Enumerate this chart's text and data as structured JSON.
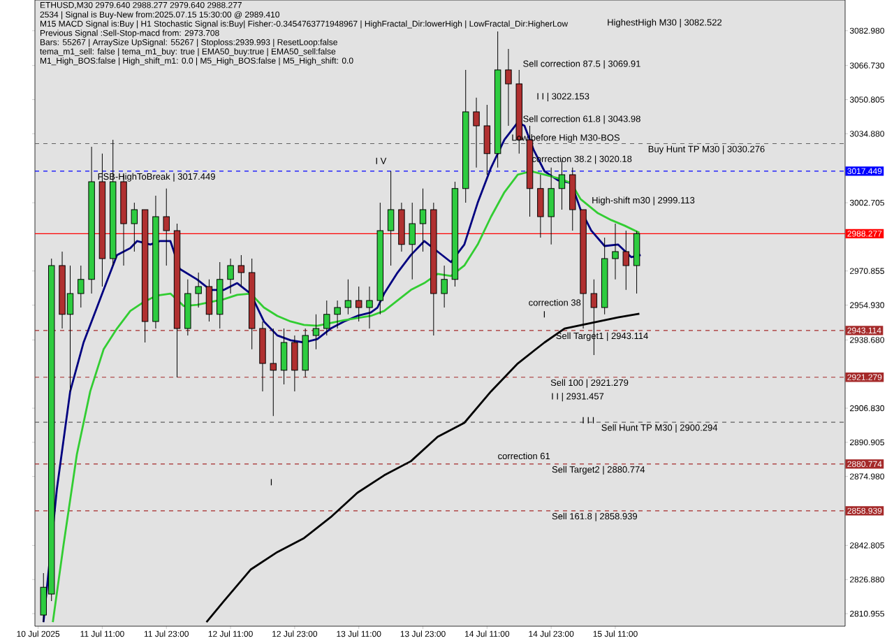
{
  "chart_data": {
    "type": "candlestick",
    "title": "ETHUSD,M30  2979.640 2988.277 2979.640 2988.277",
    "annotations": [
      "2534 | Signal is Buy-New from:2025.07.15 15:30:00 @ 2989.410",
      "M15 MACD Signal is:Buy | H1 Stochastic Signal is:Buy| Fisher:-0.3454763771948967 | HighFractal_Dir:lowerHigh | LowFractal_Dir:HigherLow",
      "Previous Signal :Sell-Stop-macd from: 2973.708",
      "Bars: 55267 | ArraySize UpSignal: 55267 | Stoploss:2939.993 | ResetLoop:false",
      "tema_m1_sell: false | tema_m1_buy: true | EMA50_buy:true | EMA50_sell:false",
      "M1_High_BOS:false | High_shift_m1: 0.0 | M5_High_BOS:false | M5_High_shift: 0.0",
      "HighestHigh   M30 | 3082.522",
      "Sell correction 87.5 | 3069.91",
      "I I | 3022.153",
      "Sell correction 61.8 | 3043.98",
      "Low before High   M30-BOS",
      "I V",
      "correction 38.2 | 3020.18",
      "High-shift m30 | 2999.113",
      "correction 38",
      "I",
      "I I | 2931.457",
      "I I I",
      "correction 61",
      "I",
      {
        "text": "FSB-HighToBreak | 3017.449",
        "x": "2025-07-11T09:45",
        "y": 3017.449
      },
      {
        "text": "Buy Hunt TP M30 | 3030.276",
        "x": "2025-07-15T16:45",
        "y": 3030.276
      },
      {
        "text": "Sell Target1 | 2943.114",
        "x": "2025-07-14T23:30",
        "y": 2943.114
      },
      {
        "text": "Sell 100 | 2921.279",
        "x": "2025-07-14T22:30",
        "y": 2921.279
      },
      {
        "text": "Sell Hunt TP M30 | 2900.294",
        "x": "2025-07-15T08:00",
        "y": 2900.294
      },
      {
        "text": "Sell Target2 | 2880.774",
        "x": "2025-07-14T22:45",
        "y": 2880.774
      },
      {
        "text": "Sell 161.8 | 2858.939",
        "x": "2025-07-14T22:45",
        "y": 2858.939
      }
    ],
    "x": [
      "2025-07-11T00:00",
      "2025-07-11T01:30",
      "2025-07-11T03:30",
      "2025-07-11T05:00",
      "2025-07-11T07:00",
      "2025-07-11T09:00",
      "2025-07-11T11:00",
      "2025-07-11T13:00",
      "2025-07-11T15:00",
      "2025-07-11T17:00",
      "2025-07-11T19:00",
      "2025-07-11T21:00",
      "2025-07-11T23:00",
      "2025-07-12T01:00",
      "2025-07-12T03:00",
      "2025-07-12T05:00",
      "2025-07-12T07:00",
      "2025-07-12T09:00",
      "2025-07-12T11:00",
      "2025-07-12T13:00",
      "2025-07-12T15:00",
      "2025-07-12T17:00",
      "2025-07-12T19:00",
      "2025-07-12T21:00",
      "2025-07-12T23:00",
      "2025-07-13T01:00",
      "2025-07-13T03:00",
      "2025-07-13T05:00",
      "2025-07-13T07:00",
      "2025-07-13T09:00",
      "2025-07-13T11:00",
      "2025-07-13T13:00",
      "2025-07-13T15:00",
      "2025-07-13T17:00",
      "2025-07-13T19:00",
      "2025-07-13T21:00",
      "2025-07-13T23:00",
      "2025-07-14T01:00",
      "2025-07-14T03:00",
      "2025-07-14T05:00",
      "2025-07-14T07:00",
      "2025-07-14T09:00",
      "2025-07-14T11:00",
      "2025-07-14T13:00",
      "2025-07-14T15:00",
      "2025-07-14T17:00",
      "2025-07-14T19:00",
      "2025-07-14T21:00",
      "2025-07-14T23:00",
      "2025-07-15T01:00",
      "2025-07-15T03:00",
      "2025-07-15T05:00",
      "2025-07-15T07:00",
      "2025-07-15T09:00",
      "2025-07-15T11:00",
      "2025-07-15T13:00",
      "2025-07-15T15:00"
    ],
    "ohlc": [
      [
        2810.3,
        2829.9,
        2807.0,
        2823.3
      ],
      [
        2820.1,
        2976.6,
        2816.8,
        2973.4
      ],
      [
        2973.4,
        2979.9,
        2944.0,
        2950.6
      ],
      [
        2950.6,
        2973.4,
        2914.7,
        2960.3
      ],
      [
        2960.3,
        2973.4,
        2953.8,
        2966.9
      ],
      [
        2966.9,
        3028.8,
        2960.3,
        3012.5
      ],
      [
        3012.5,
        3025.6,
        2963.6,
        2976.6
      ],
      [
        2976.6,
        3032.1,
        2973.4,
        3012.5
      ],
      [
        3012.5,
        3015.8,
        2973.4,
        2992.9
      ],
      [
        2992.9,
        3002.7,
        2979.9,
        2999.5
      ],
      [
        2999.5,
        2999.5,
        2937.5,
        2947.3
      ],
      [
        2947.3,
        3006.0,
        2944.0,
        2996.2
      ],
      [
        2996.2,
        3009.3,
        2973.4,
        2989.7
      ],
      [
        2989.7,
        2992.9,
        2921.2,
        2944.0
      ],
      [
        2944.0,
        2966.9,
        2940.8,
        2960.3
      ],
      [
        2960.3,
        2970.1,
        2953.8,
        2963.6
      ],
      [
        2963.6,
        2966.9,
        2947.3,
        2950.6
      ],
      [
        2950.6,
        2975.0,
        2944.0,
        2966.9
      ],
      [
        2966.9,
        2976.6,
        2960.3,
        2973.4
      ],
      [
        2973.4,
        2978.3,
        2963.6,
        2970.1
      ],
      [
        2970.1,
        2976.6,
        2934.3,
        2944.0
      ],
      [
        2944.0,
        2947.3,
        2914.7,
        2927.7
      ],
      [
        2927.7,
        2944.0,
        2903.2,
        2924.5
      ],
      [
        2924.5,
        2944.0,
        2917.9,
        2937.5
      ],
      [
        2937.5,
        2940.8,
        2914.7,
        2924.5
      ],
      [
        2924.5,
        2944.0,
        2921.2,
        2940.8
      ],
      [
        2940.8,
        2950.6,
        2934.3,
        2944.0
      ],
      [
        2944.0,
        2957.1,
        2940.8,
        2950.6
      ],
      [
        2950.6,
        2957.1,
        2944.0,
        2953.8
      ],
      [
        2953.8,
        2966.9,
        2950.6,
        2957.1
      ],
      [
        2957.1,
        2963.6,
        2947.3,
        2953.8
      ],
      [
        2953.8,
        2963.6,
        2944.0,
        2957.1
      ],
      [
        2957.1,
        3002.7,
        2950.6,
        2989.7
      ],
      [
        2989.7,
        3017.4,
        2973.4,
        2999.5
      ],
      [
        2999.5,
        3002.7,
        2979.9,
        2983.2
      ],
      [
        2983.2,
        3002.7,
        2966.9,
        2992.9
      ],
      [
        2992.9,
        3009.3,
        2979.9,
        2999.5
      ],
      [
        2999.5,
        3002.7,
        2940.8,
        2960.3
      ],
      [
        2960.3,
        2973.4,
        2953.8,
        2966.9
      ],
      [
        2966.9,
        3012.5,
        2963.6,
        3009.3
      ],
      [
        3009.3,
        3064.7,
        3002.7,
        3045.1
      ],
      [
        3045.1,
        3051.7,
        3019.1,
        3038.6
      ],
      [
        3038.6,
        3048.4,
        3015.8,
        3025.6
      ],
      [
        3025.6,
        3082.6,
        3019.1,
        3064.7
      ],
      [
        3064.7,
        3074.5,
        3038.6,
        3058.2
      ],
      [
        3058.2,
        3064.7,
        3025.6,
        3032.1
      ],
      [
        3032.1,
        3038.6,
        2996.2,
        3009.3
      ],
      [
        3009.3,
        3015.8,
        2986.4,
        2996.2
      ],
      [
        2996.2,
        3019.1,
        2983.2,
        3009.3
      ],
      [
        3009.3,
        3022.3,
        2999.5,
        3015.8
      ],
      [
        3015.8,
        3019.1,
        2989.7,
        2999.5
      ],
      [
        2999.5,
        2999.5,
        2944.0,
        2960.3
      ],
      [
        2960.3,
        2966.9,
        2931.6,
        2953.8
      ],
      [
        2953.8,
        2986.4,
        2950.6,
        2976.6
      ],
      [
        2976.6,
        2992.9,
        2966.9,
        2979.9
      ],
      [
        2979.9,
        2989.7,
        2962.0,
        2973.4
      ],
      [
        2973.4,
        2989.4,
        2960.3,
        2988.3
      ]
    ],
    "series": [
      {
        "type": "line",
        "color": "#000080",
        "x": [
          "2025-07-11T00:00",
          "2025-07-11T02:30",
          "2025-07-11T05:00",
          "2025-07-11T07:30",
          "2025-07-11T10:00",
          "2025-07-11T11:15",
          "2025-07-11T13:45",
          "2025-07-11T16:15",
          "2025-07-11T17:30",
          "2025-07-11T20:00",
          "2025-07-11T21:45",
          "2025-07-11T23:45",
          "2025-07-12T01:30",
          "2025-07-12T04:45",
          "2025-07-12T07:15",
          "2025-07-12T09:45",
          "2025-07-12T12:15",
          "2025-07-12T14:45",
          "2025-07-12T17:15",
          "2025-07-12T19:45",
          "2025-07-12T22:15",
          "2025-07-13T00:45",
          "2025-07-13T03:15",
          "2025-07-13T05:45",
          "2025-07-13T08:15",
          "2025-07-13T10:45",
          "2025-07-13T13:15",
          "2025-07-13T14:30",
          "2025-07-13T15:45",
          "2025-07-13T18:15",
          "2025-07-13T20:45",
          "2025-07-13T23:15",
          "2025-07-14T01:45",
          "2025-07-14T04:15",
          "2025-07-14T06:45",
          "2025-07-14T09:15",
          "2025-07-14T11:45",
          "2025-07-14T14:15",
          "2025-07-14T16:45",
          "2025-07-14T18:00",
          "2025-07-14T19:45",
          "2025-07-14T21:45",
          "2025-07-15T00:15",
          "2025-07-15T02:45",
          "2025-07-15T04:30",
          "2025-07-15T06:30",
          "2025-07-15T09:00",
          "2025-07-15T11:30",
          "2025-07-15T14:00",
          "2025-07-15T15:45"
        ],
        "values": [
          2807.0,
          2869.0,
          2914.7,
          2937.5,
          2953.8,
          2962.0,
          2978.3,
          2981.5,
          2984.8,
          2983.2,
          2984.8,
          2984.8,
          2971.8,
          2966.9,
          2962.0,
          2962.0,
          2965.2,
          2960.3,
          2947.3,
          2940.8,
          2938.5,
          2937.5,
          2939.1,
          2944.0,
          2947.3,
          2949.9,
          2951.5,
          2953.8,
          2960.3,
          2970.1,
          2978.3,
          2984.8,
          2979.9,
          2975.0,
          2983.2,
          3002.7,
          3019.1,
          3032.1,
          3040.2,
          3038.6,
          3027.2,
          3017.4,
          3013.2,
          3011.9,
          2999.5,
          2989.7,
          2982.5,
          2983.2,
          2977.3,
          2978.3
        ]
      },
      {
        "type": "line",
        "color": "#32cd32",
        "x": [
          "2025-07-11T01:45",
          "2025-07-11T03:45",
          "2025-07-11T06:15",
          "2025-07-11T08:45",
          "2025-07-11T11:15",
          "2025-07-11T13:45",
          "2025-07-11T16:15",
          "2025-07-11T18:45",
          "2025-07-11T21:15",
          "2025-07-11T23:45",
          "2025-07-12T02:15",
          "2025-07-12T04:45",
          "2025-07-12T07:15",
          "2025-07-12T09:45",
          "2025-07-12T12:15",
          "2025-07-12T14:45",
          "2025-07-12T17:15",
          "2025-07-12T19:45",
          "2025-07-12T22:15",
          "2025-07-13T00:45",
          "2025-07-13T03:15",
          "2025-07-13T05:45",
          "2025-07-13T08:15",
          "2025-07-13T10:45",
          "2025-07-13T13:15",
          "2025-07-13T15:45",
          "2025-07-13T18:15",
          "2025-07-13T20:45",
          "2025-07-13T23:15",
          "2025-07-14T01:45",
          "2025-07-14T04:15",
          "2025-07-14T06:45",
          "2025-07-14T09:15",
          "2025-07-14T11:45",
          "2025-07-14T14:15",
          "2025-07-14T16:45",
          "2025-07-14T19:15",
          "2025-07-14T21:45",
          "2025-07-15T00:15",
          "2025-07-15T02:45",
          "2025-07-15T04:30",
          "2025-07-15T07:45",
          "2025-07-15T10:15",
          "2025-07-15T12:45",
          "2025-07-15T15:30"
        ],
        "values": [
          2807.0,
          2843.0,
          2885.3,
          2914.7,
          2934.3,
          2944.0,
          2952.2,
          2956.4,
          2959.4,
          2960.3,
          2954.5,
          2955.1,
          2956.4,
          2957.7,
          2959.7,
          2960.3,
          2953.8,
          2949.9,
          2947.3,
          2945.7,
          2945.3,
          2946.6,
          2947.9,
          2948.9,
          2949.9,
          2952.2,
          2957.1,
          2962.0,
          2965.2,
          2969.5,
          2968.5,
          2973.4,
          2983.2,
          2996.2,
          3007.6,
          3015.8,
          3017.4,
          3015.8,
          3014.2,
          3011.9,
          3004.4,
          2997.8,
          2994.6,
          2992.0,
          2988.7
        ]
      },
      {
        "type": "line",
        "color": "#000000",
        "x": [
          "2025-07-12T06:30",
          "2025-07-12T09:45",
          "2025-07-12T14:45",
          "2025-07-12T19:45",
          "2025-07-13T00:45",
          "2025-07-13T05:45",
          "2025-07-13T10:45",
          "2025-07-13T15:45",
          "2025-07-13T20:45",
          "2025-07-14T01:45",
          "2025-07-14T06:45",
          "2025-07-14T11:45",
          "2025-07-14T16:45",
          "2025-07-14T21:45",
          "2025-07-15T01:30",
          "2025-07-15T06:30",
          "2025-07-15T11:30",
          "2025-07-15T15:30"
        ],
        "values": [
          2807.0,
          2816.8,
          2831.5,
          2839.7,
          2846.2,
          2856.0,
          2867.4,
          2875.5,
          2882.1,
          2893.5,
          2900.0,
          2914.7,
          2927.7,
          2937.5,
          2944.0,
          2946.6,
          2949.2,
          2950.9
        ]
      }
    ],
    "ref_lines": [
      {
        "axis": "y",
        "value": 3017.449,
        "label": "3017.449",
        "color": "#0000ff",
        "line_style": "dashed"
      },
      {
        "axis": "y",
        "value": 2988.277,
        "label": "2988.277",
        "color": "#ff0000",
        "line_style": "solid"
      },
      {
        "axis": "y",
        "value": 2943.114,
        "label": "2943.114",
        "color": "#a52a2a",
        "line_style": "dashed"
      },
      {
        "axis": "y",
        "value": 2921.279,
        "label": "2921.279",
        "color": "#a52a2a",
        "line_style": "dashed"
      },
      {
        "axis": "y",
        "value": 2880.774,
        "label": "2880.774",
        "color": "#a52a2a",
        "line_style": "dashed"
      },
      {
        "axis": "y",
        "value": 2858.939,
        "label": "2858.939",
        "color": "#a52a2a",
        "line_style": "dashed"
      },
      {
        "axis": "y",
        "value": 3030.276,
        "color": "#606060",
        "line_style": "dashed"
      },
      {
        "axis": "y",
        "value": 2900.294,
        "color": "#606060",
        "line_style": "dashed"
      }
    ],
    "xlim": [
      "2025-07-10T22:24",
      "2025-07-17T06:00"
    ],
    "xticks": [
      {
        "value": "2025-07-10T23:00",
        "label": "10 Jul 2025"
      },
      {
        "value": "2025-07-11T11:00",
        "label": "11 Jul 11:00"
      },
      {
        "value": "2025-07-11T23:00",
        "label": "11 Jul 23:00"
      },
      {
        "value": "2025-07-12T11:00",
        "label": "12 Jul 11:00"
      },
      {
        "value": "2025-07-12T23:00",
        "label": "12 Jul 23:00"
      },
      {
        "value": "2025-07-13T11:00",
        "label": "13 Jul 11:00"
      },
      {
        "value": "2025-07-13T23:00",
        "label": "13 Jul 23:00"
      },
      {
        "value": "2025-07-14T11:00",
        "label": "14 Jul 11:00"
      },
      {
        "value": "2025-07-14T23:00",
        "label": "14 Jul 23:00"
      },
      {
        "value": "2025-07-15T11:00",
        "label": "15 Jul 11:00"
      }
    ],
    "ylim": [
      2805.1,
      3097.3
    ],
    "yticks": [
      {
        "value": 3082.98,
        "label": "3082.980"
      },
      {
        "value": 3066.73,
        "label": "3066.730"
      },
      {
        "value": 3050.805,
        "label": "3050.805"
      },
      {
        "value": 3034.88,
        "label": "3034.880"
      },
      {
        "value": 3002.705,
        "label": "3002.705"
      },
      {
        "value": 2970.855,
        "label": "2970.855"
      },
      {
        "value": 2954.93,
        "label": "2954.930"
      },
      {
        "value": 2938.68,
        "label": "2938.680"
      },
      {
        "value": 2906.83,
        "label": "2906.830"
      },
      {
        "value": 2890.905,
        "label": "2890.905"
      },
      {
        "value": 2874.98,
        "label": "2874.980"
      },
      {
        "value": 2842.805,
        "label": "2842.805"
      },
      {
        "value": 2826.88,
        "label": "2826.880"
      },
      {
        "value": 2810.955,
        "label": "2810.955"
      }
    ]
  }
}
